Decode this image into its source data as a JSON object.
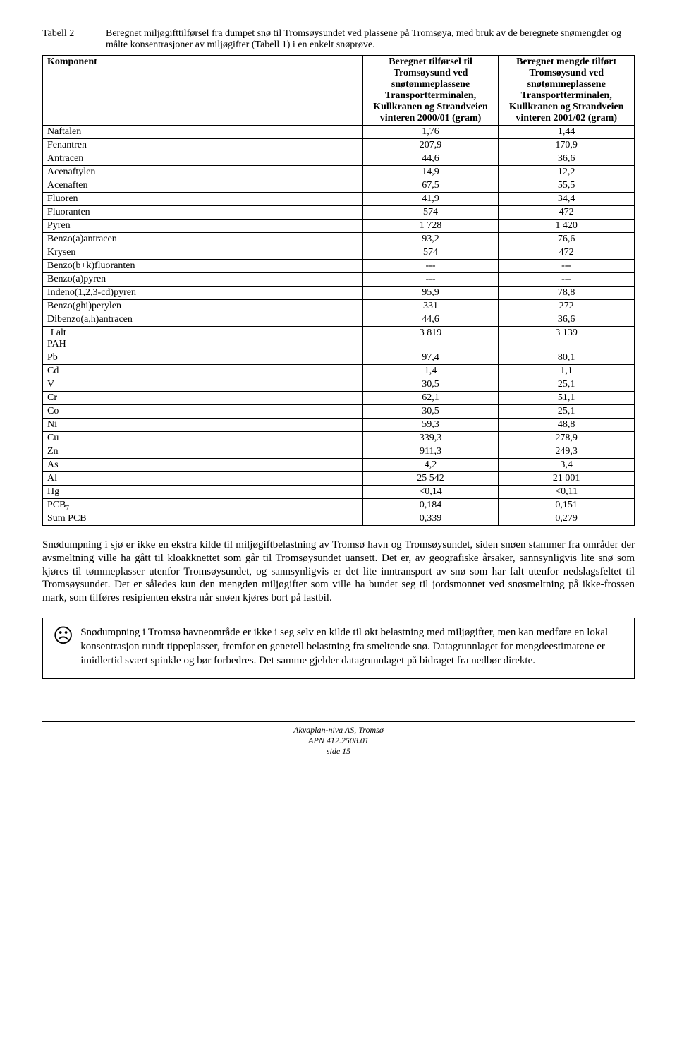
{
  "caption": {
    "label": "Tabell 2",
    "text": "Beregnet miljøgifttilførsel fra dumpet snø til Tromsøysundet ved plassene på Tromsøya, med bruk av de beregnete snømengder og målte konsentrasjoner av miljøgifter (Tabell 1) i en enkelt snøprøve."
  },
  "table": {
    "columns": [
      "Komponent",
      "Beregnet tilførsel til Tromsøysund ved snøtømmeplassene Transportterminalen, Kullkranen og Strandveien vinteren 2000/01 (gram)",
      "Beregnet mengde tilført Tromsøysund ved snøtømmeplassene Transportterminalen, Kullkranen og Strandveien vinteren 2001/02 (gram)"
    ],
    "rows": [
      {
        "label": "Naftalen",
        "v1": "1,76",
        "v2": "1,44"
      },
      {
        "label": "Fenantren",
        "v1": "207,9",
        "v2": "170,9"
      },
      {
        "label": "Antracen",
        "v1": "44,6",
        "v2": "36,6"
      },
      {
        "label": "Acenaftylen",
        "v1": "14,9",
        "v2": "12,2"
      },
      {
        "label": "Acenaften",
        "v1": "67,5",
        "v2": "55,5"
      },
      {
        "label": "Fluoren",
        "v1": "41,9",
        "v2": "34,4"
      },
      {
        "label": "Fluoranten",
        "v1": "574",
        "v2": "472"
      },
      {
        "label": "Pyren",
        "v1": "1 728",
        "v2": "1 420"
      },
      {
        "label": "Benzo(a)antracen",
        "v1": "93,2",
        "v2": "76,6"
      },
      {
        "label": "Krysen",
        "v1": "574",
        "v2": "472"
      },
      {
        "label": "Benzo(b+k)fluoranten",
        "v1": "---",
        "v2": "---"
      },
      {
        "label": "Benzo(a)pyren",
        "v1": "---",
        "v2": "---"
      },
      {
        "label": "Indeno(1,2,3-cd)pyren",
        "v1": "95,9",
        "v2": "78,8"
      },
      {
        "label": "Benzo(ghi)perylen",
        "v1": "331",
        "v2": "272"
      },
      {
        "label": "Dibenzo(a,h)antracen",
        "v1": "44,6",
        "v2": "36,6"
      },
      {
        "label": "I alt PAH",
        "v1": "3 819",
        "v2": "3 139",
        "indent": true
      },
      {
        "label": "Pb",
        "v1": "97,4",
        "v2": "80,1"
      },
      {
        "label": "Cd",
        "v1": "1,4",
        "v2": "1,1"
      },
      {
        "label": "V",
        "v1": "30,5",
        "v2": "25,1"
      },
      {
        "label": "Cr",
        "v1": "62,1",
        "v2": "51,1"
      },
      {
        "label": "Co",
        "v1": "30,5",
        "v2": "25,1"
      },
      {
        "label": "Ni",
        "v1": "59,3",
        "v2": "48,8"
      },
      {
        "label": "Cu",
        "v1": "339,3",
        "v2": "278,9"
      },
      {
        "label": "Zn",
        "v1": "911,3",
        "v2": "249,3"
      },
      {
        "label": "As",
        "v1": "4,2",
        "v2": "3,4"
      },
      {
        "label": "Al",
        "v1": "25 542",
        "v2": "21 001"
      },
      {
        "label": "Hg",
        "v1": "<0,14",
        "v2": "<0,11"
      },
      {
        "label": "PCB₇",
        "v1": "0,184",
        "v2": "0,151"
      },
      {
        "label": "Sum PCB",
        "v1": "0,339",
        "v2": "0,279"
      }
    ]
  },
  "paragraph": "Snødumpning i sjø er ikke en ekstra kilde til miljøgiftbelastning av Tromsø havn og Tromsøysundet, siden snøen stammer fra områder der avsmeltning ville ha gått til kloakknettet som går til Tromsøysundet uansett. Det er, av geografiske årsaker, sannsynligvis lite snø som kjøres til tømmeplasser utenfor Tromsøysundet, og sannsynligvis er det lite inntransport av snø som har falt utenfor nedslagsfeltet til Tromsøysundet. Det er således kun den mengden miljøgifter som ville ha bundet seg til jordsmonnet ved snøsmeltning på ikke-frossen mark, som tilføres resipienten ekstra når snøen kjøres bort på lastbil.",
  "callout": {
    "icon": "☹",
    "text": "Snødumpning i Tromsø havneområde er ikke i seg selv en kilde til økt belastning med miljøgifter, men kan medføre en lokal konsentrasjon rundt tippeplasser, fremfor en generell belastning fra smeltende snø. Datagrunnlaget for mengdeestimatene er imidlertid svært spinkle og bør forbedres. Det samme gjelder datagrunnlaget på bidraget fra nedbør direkte."
  },
  "footer": {
    "line1": "Akvaplan-niva AS, Tromsø",
    "line2": "APN 412.2508.01",
    "line3": "side 15"
  }
}
